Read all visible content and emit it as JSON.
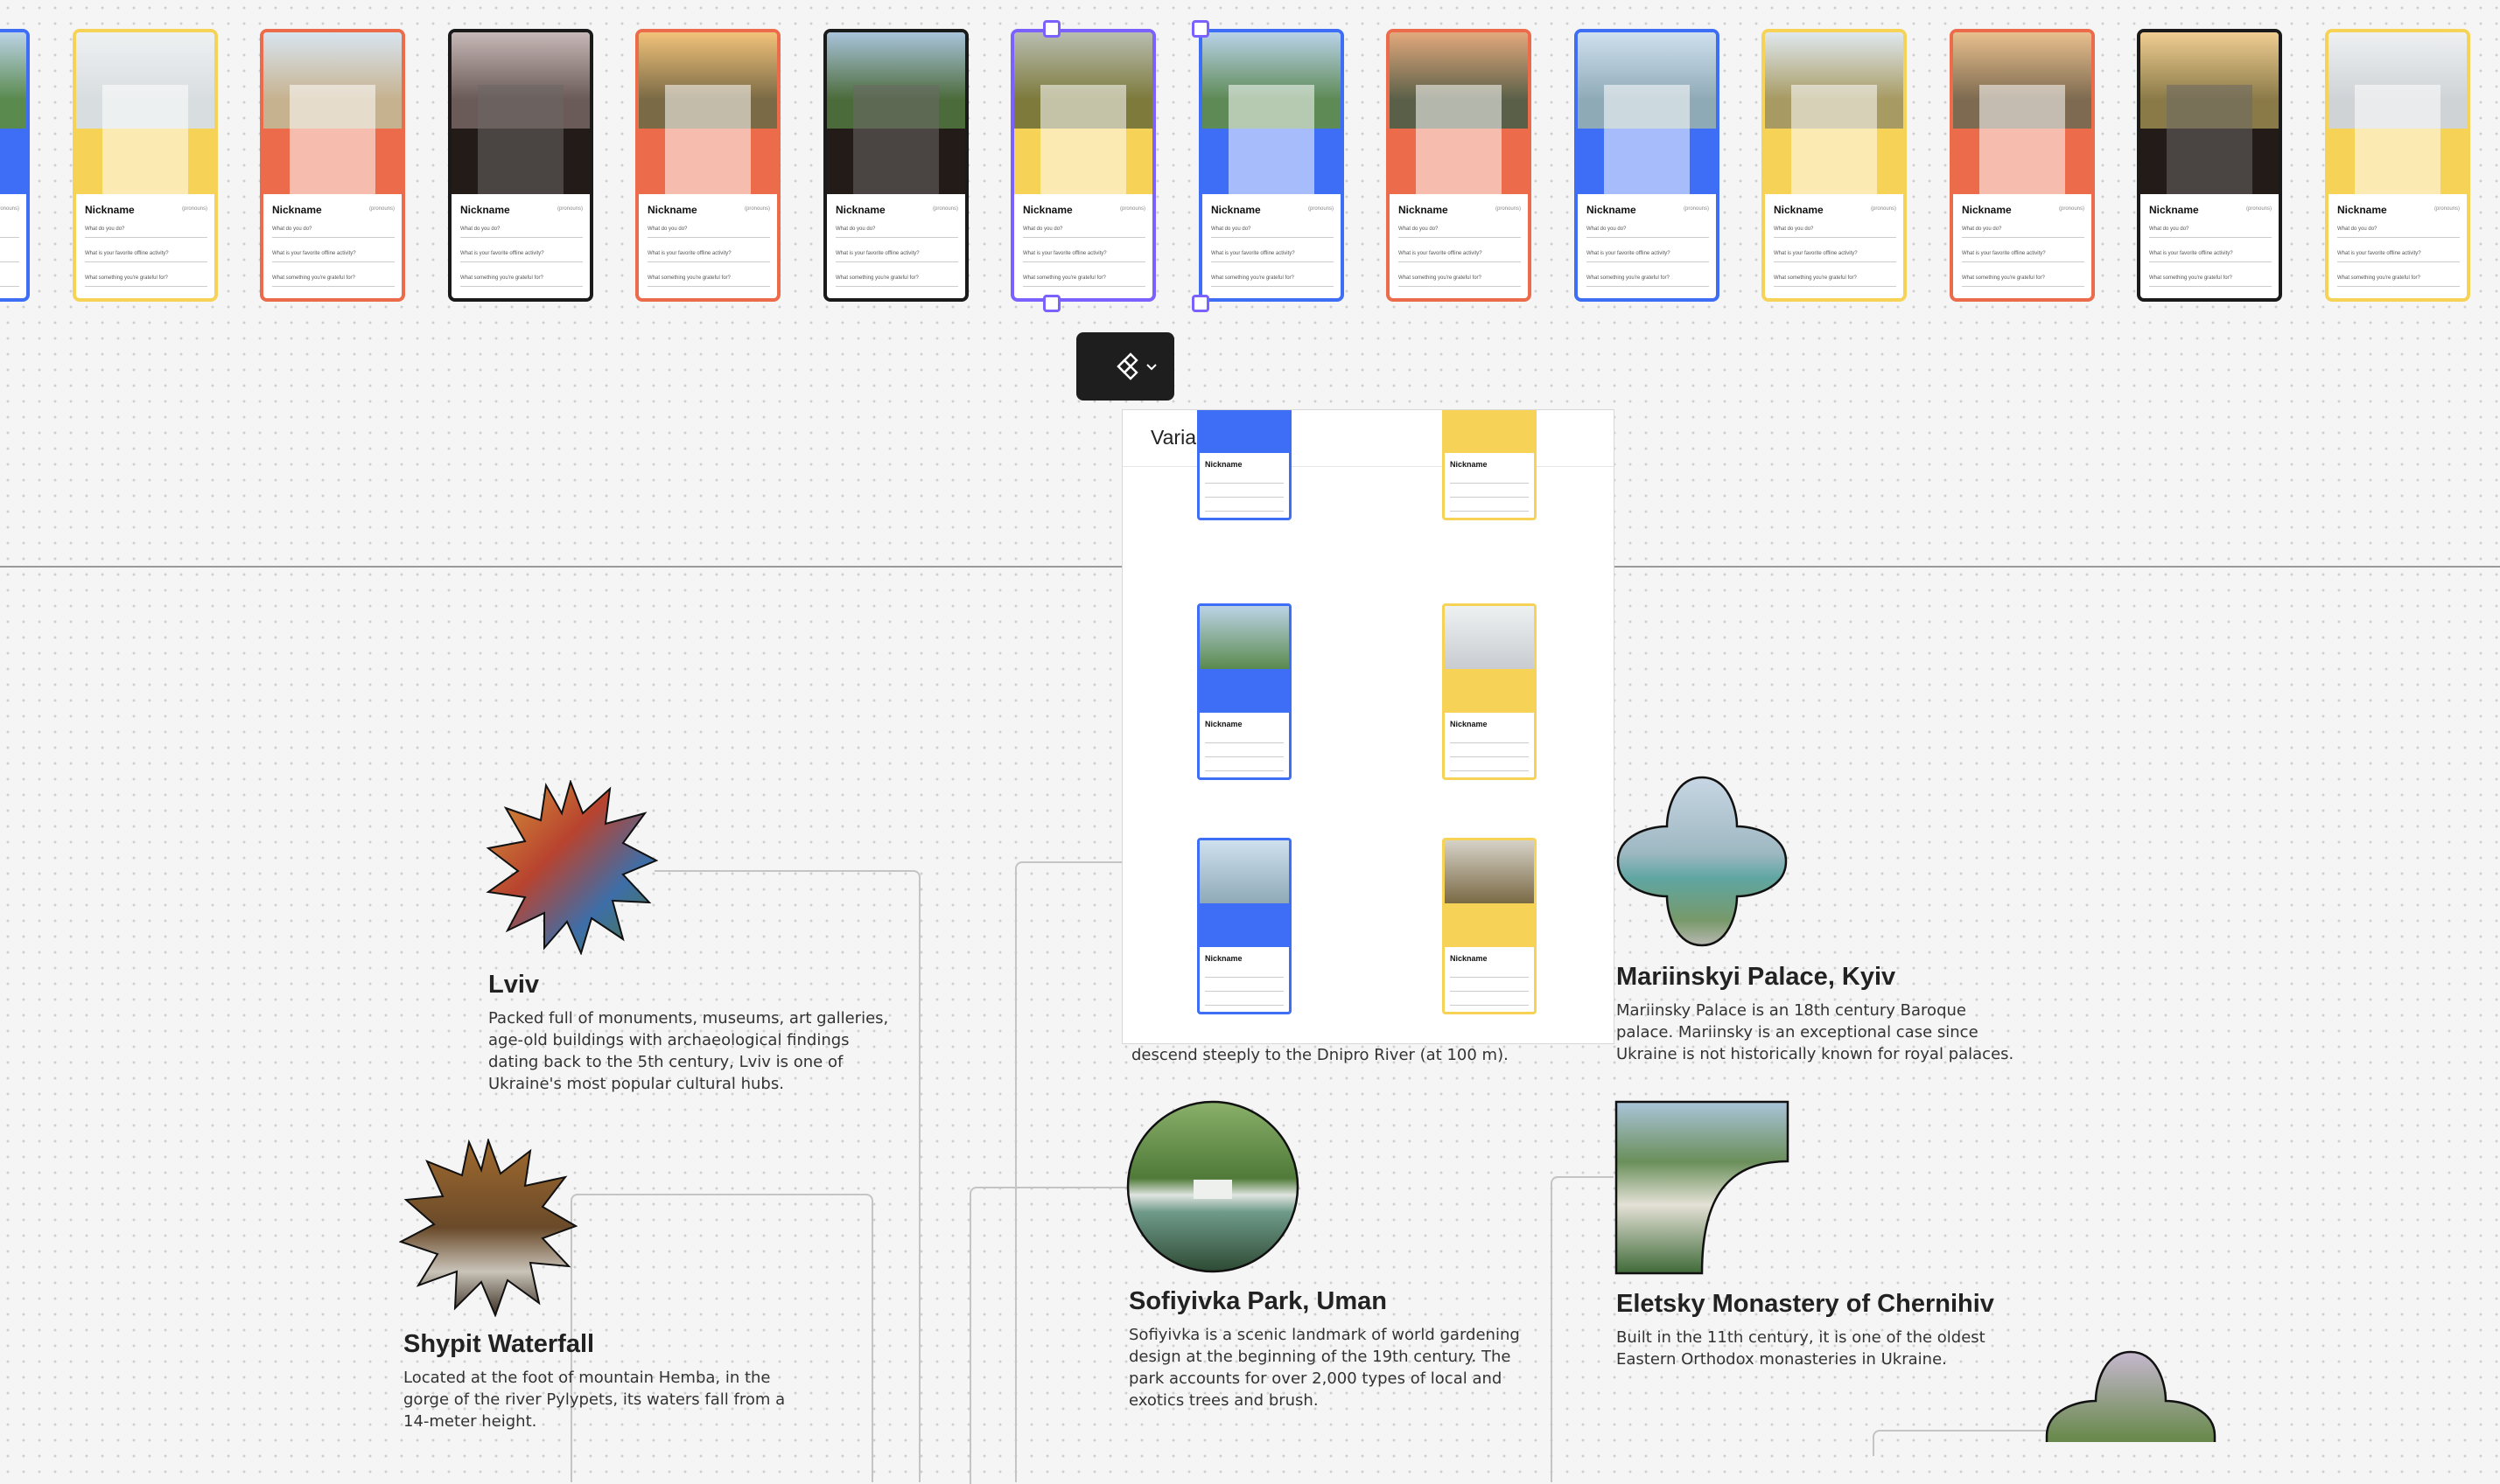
{
  "colors": {
    "blue": "#3d6ef5",
    "yellow": "#f6d356",
    "orange": "#ec6b4b",
    "dark": "#231b18",
    "selection": "#7b61ff"
  },
  "card": {
    "nickname": "Nickname",
    "pronouns": "(pronouns)",
    "q1": "What do you do?",
    "q2": "What is your favorite offline activity?",
    "q3": "What something you're grateful for?"
  },
  "cards": [
    {
      "border": "blue",
      "photo": "#5a8a4e",
      "sky": "#bcd3e6"
    },
    {
      "border": "yellow",
      "photo": "#d8dde0",
      "sky": "#eef1f2"
    },
    {
      "border": "orange",
      "photo": "#c7b28f",
      "sky": "#d7e4ef"
    },
    {
      "border": "dark",
      "photo": "#6a5a58",
      "sky": "#c6b8b6"
    },
    {
      "border": "orange",
      "photo": "#7a6a45",
      "sky": "#f1c27a"
    },
    {
      "border": "dark",
      "photo": "#4c6b3a",
      "sky": "#a8c3da"
    },
    {
      "border": "yellow",
      "photo": "#7d7a3c",
      "sky": "#b8bdb0"
    },
    {
      "border": "blue",
      "photo": "#5e8a55",
      "sky": "#b8d2e8"
    },
    {
      "border": "orange",
      "photo": "#5a6048",
      "sky": "#e2a87c"
    },
    {
      "border": "blue",
      "photo": "#8faab7",
      "sky": "#cfe0ee"
    },
    {
      "border": "yellow",
      "photo": "#a79a62",
      "sky": "#dfe8ee"
    },
    {
      "border": "orange",
      "photo": "#7d6a50",
      "sky": "#e8bf8d"
    },
    {
      "border": "dark",
      "photo": "#8a7a48",
      "sky": "#efcd91"
    },
    {
      "border": "yellow",
      "photo": "#cfd3d6",
      "sky": "#eef0f2"
    }
  ],
  "variants_panel": {
    "title": "Variants"
  },
  "places": {
    "lviv": {
      "title": "Lviv",
      "lines": [
        "Packed full of monuments, museums, art galleries,",
        "age-old buildings with archaeological findings",
        "dating back to the 5th century, Lviv is one of",
        "Ukraine's most popular cultural hubs."
      ]
    },
    "shypit": {
      "title": "Shypit Waterfall",
      "lines": [
        "Located at the foot of mountain Hemba, in the",
        "gorge of the river Pylypets, its waters fall from a",
        "14-meter height."
      ]
    },
    "partial": {
      "lines": [
        "descend steeply to the Dnipro River (at 100 m)."
      ]
    },
    "sofiyivka": {
      "title": "Sofiyivka Park, Uman",
      "lines": [
        "Sofiyivka is a scenic landmark of world gardening",
        "design at the beginning of the 19th century. The",
        "park accounts for over 2,000 types of local and",
        "exotics trees and brush."
      ]
    },
    "mariinskyi": {
      "title": "Mariinskyi Palace, Kyiv",
      "lines": [
        "Mariinsky Palace is an 18th century Baroque",
        "palace. Mariinsky is an exceptional case since",
        "Ukraine is not historically known for royal palaces."
      ]
    },
    "eletsky": {
      "title": "Eletsky Monastery of Chernihiv",
      "lines": [
        "Built in the 11th century, it is one of the oldest",
        "Eastern Orthodox monasteries in Ukraine."
      ]
    }
  }
}
